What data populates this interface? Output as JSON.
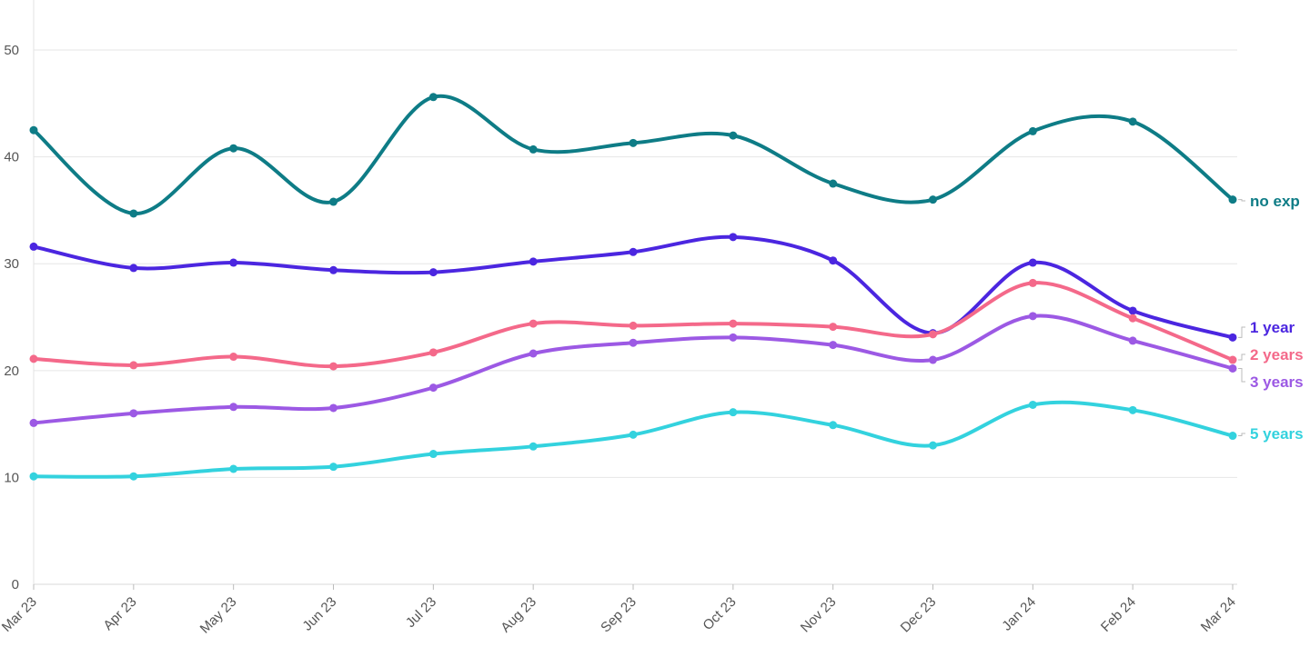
{
  "chart_data": {
    "type": "line",
    "title": "",
    "xlabel": "",
    "ylabel": "",
    "categories": [
      "Mar 23",
      "Apr 23",
      "May 23",
      "Jun 23",
      "Jul 23",
      "Aug 23",
      "Sep 23",
      "Oct 23",
      "Nov 23",
      "Dec 23",
      "Jan 24",
      "Feb 24",
      "Mar 24"
    ],
    "yticks": [
      0,
      10,
      20,
      30,
      40,
      50
    ],
    "ylim": [
      0,
      54
    ],
    "grid": true,
    "legend": "end-of-line labels",
    "series": [
      {
        "name": "no exp",
        "color": "#0e7c86",
        "values": [
          42.5,
          34.7,
          40.8,
          35.8,
          45.6,
          40.7,
          41.3,
          42.0,
          37.5,
          36.0,
          42.4,
          43.3,
          36.0
        ]
      },
      {
        "name": "1 year",
        "color": "#4b26e0",
        "values": [
          31.6,
          29.6,
          30.1,
          29.4,
          29.2,
          30.2,
          31.1,
          32.5,
          30.3,
          23.5,
          30.1,
          25.6,
          23.1
        ]
      },
      {
        "name": "2 years",
        "color": "#f4698a",
        "values": [
          21.1,
          20.5,
          21.3,
          20.4,
          21.7,
          24.4,
          24.2,
          24.4,
          24.1,
          23.4,
          28.2,
          24.9,
          21.0
        ]
      },
      {
        "name": "3 years",
        "color": "#9c59e4",
        "values": [
          15.1,
          16.0,
          16.6,
          16.5,
          18.4,
          21.6,
          22.6,
          23.1,
          22.4,
          21.0,
          25.1,
          22.8,
          20.2
        ]
      },
      {
        "name": "5 years",
        "color": "#33d2de",
        "values": [
          10.1,
          10.1,
          10.8,
          11.0,
          12.2,
          12.9,
          14.0,
          16.1,
          14.9,
          13.0,
          16.8,
          16.3,
          13.9
        ]
      }
    ]
  }
}
